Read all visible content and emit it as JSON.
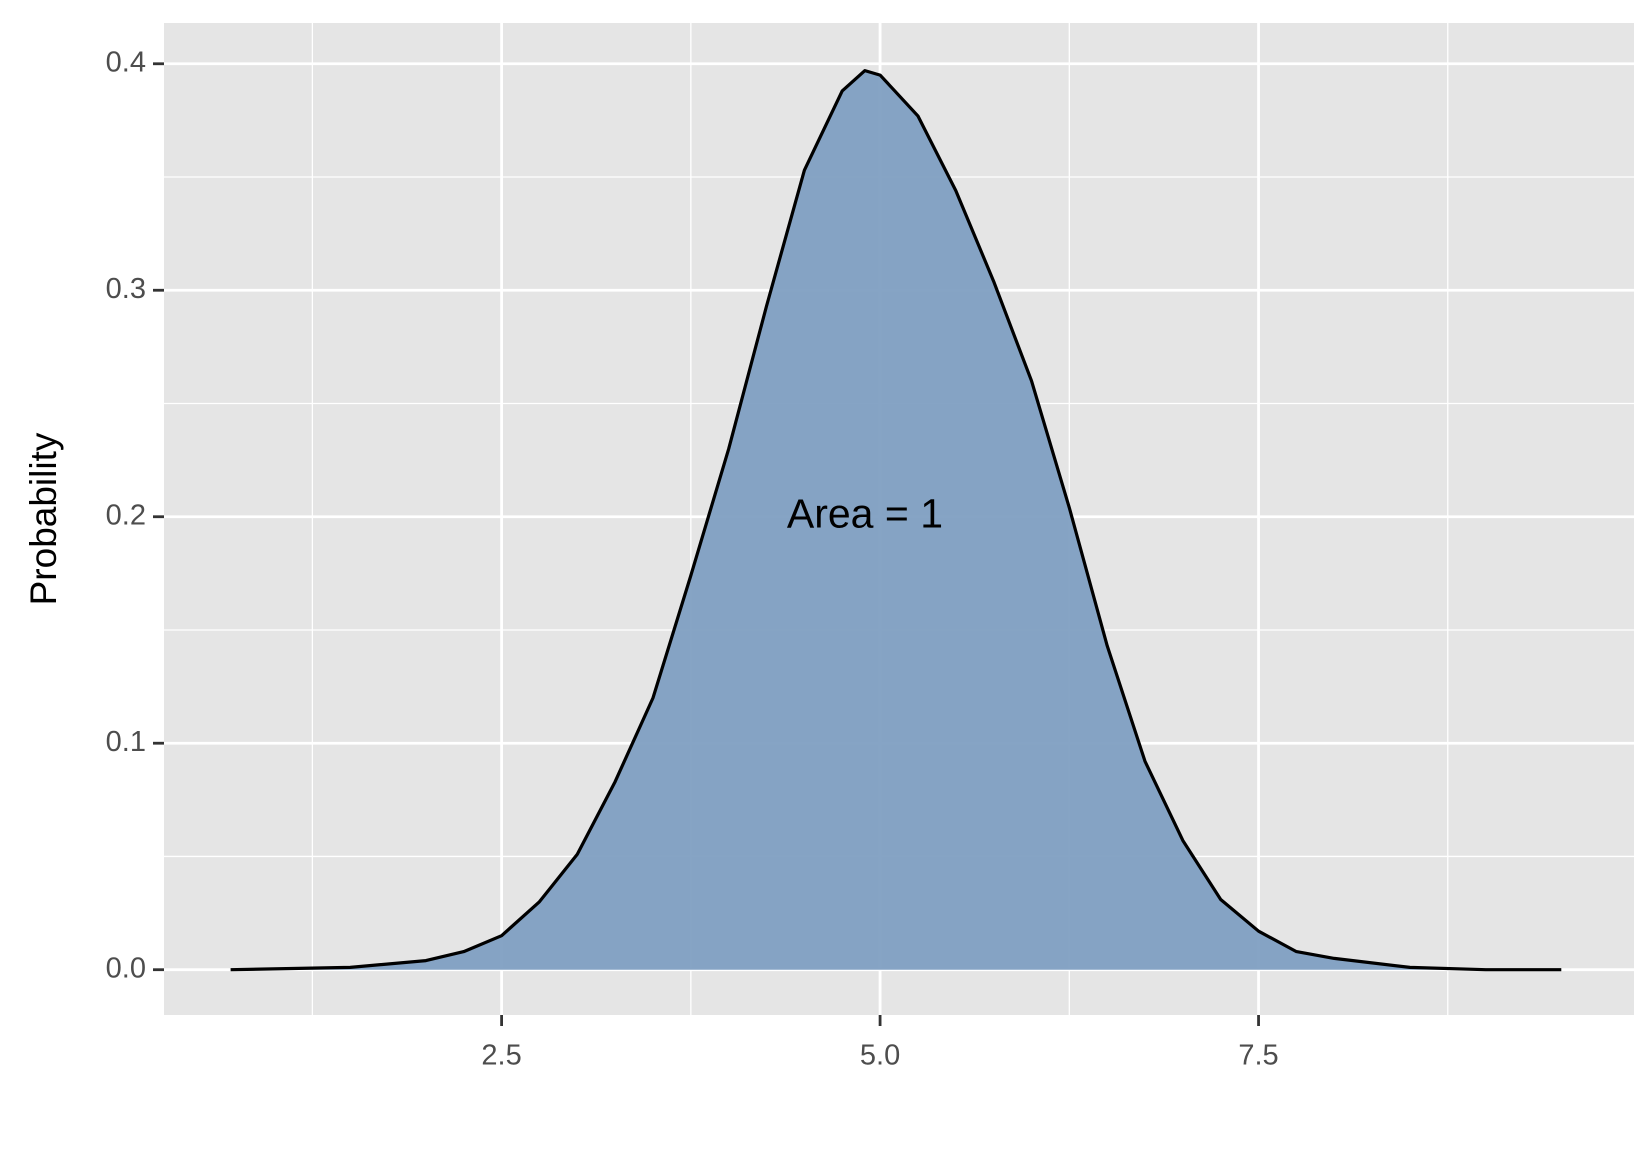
{
  "chart_data": {
    "type": "density",
    "y_label": "Probability",
    "x": [
      0.71,
      1.5,
      2.0,
      2.25,
      2.5,
      2.75,
      3.0,
      3.25,
      3.5,
      3.75,
      4.0,
      4.25,
      4.5,
      4.75,
      4.9,
      5.0,
      5.25,
      5.5,
      5.75,
      6.0,
      6.25,
      6.5,
      6.75,
      7.0,
      7.25,
      7.5,
      7.75,
      8.0,
      8.5,
      9.0,
      9.5
    ],
    "y": [
      0.0,
      0.001,
      0.004,
      0.008,
      0.015,
      0.03,
      0.051,
      0.083,
      0.12,
      0.174,
      0.23,
      0.293,
      0.353,
      0.388,
      0.397,
      0.395,
      0.377,
      0.344,
      0.304,
      0.26,
      0.204,
      0.143,
      0.092,
      0.057,
      0.031,
      0.017,
      0.008,
      0.005,
      0.001,
      0.0,
      0.0
    ],
    "fill": "#7f9fc2",
    "line_color": "#000000",
    "xlim": [
      0.27,
      9.98
    ],
    "ylim": [
      -0.02,
      0.418
    ],
    "xticks": [
      2.5,
      {
        "value": 5,
        "label": "5.0"
      },
      7.5
    ],
    "yticks": [
      {
        "value": 0,
        "label": "0.0"
      },
      0.1,
      0.2,
      0.3,
      0.4
    ],
    "x_minor_ticks": [
      1.25,
      3.75,
      6.25,
      8.75
    ],
    "y_minor_ticks": [
      0.05,
      0.15,
      0.25,
      0.35
    ],
    "annotation": {
      "text": "Area = 1",
      "x": 4.9,
      "y": 0.2
    },
    "grid": true
  }
}
